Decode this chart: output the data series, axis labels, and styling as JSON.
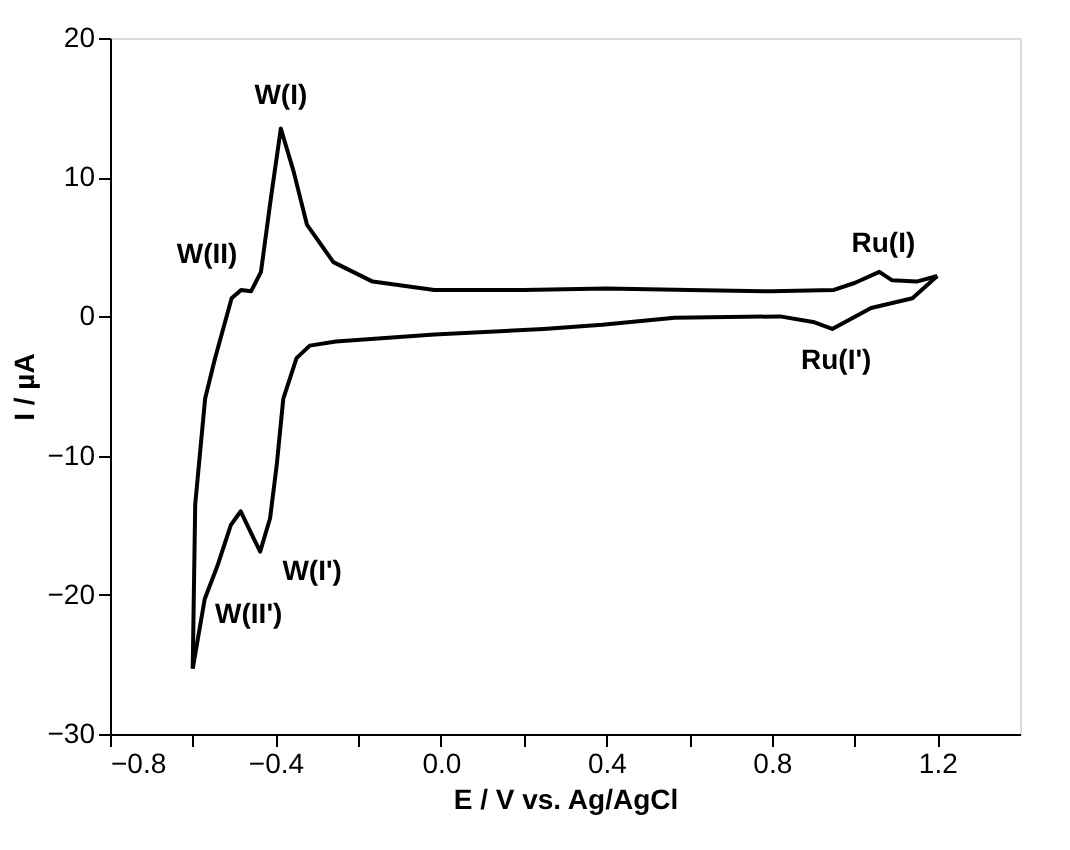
{
  "chart_data": {
    "type": "line",
    "xlabel": "E / V vs. Ag/AgCl",
    "ylabel": "I / µA",
    "xlim": [
      -0.8,
      1.4
    ],
    "ylim": [
      -30,
      20
    ],
    "xticks": [
      -0.8,
      {
        "value": -0.6,
        "label": null
      },
      -0.4,
      {
        "value": -0.2,
        "label": null
      },
      {
        "value": 0.0,
        "label": "0.0"
      },
      {
        "value": 0.2,
        "label": null
      },
      0.4,
      {
        "value": 0.6,
        "label": null
      },
      0.8,
      {
        "value": 1.0,
        "label": null
      },
      1.2
    ],
    "yticks": [
      -30,
      -20,
      -10,
      0,
      10,
      20
    ],
    "grid": false,
    "marker": "none",
    "line_style": "solid",
    "series": [
      {
        "color": "#000000",
        "x": [
          -0.6,
          -0.594,
          -0.57,
          -0.546,
          -0.506,
          -0.483,
          -0.459,
          -0.435,
          -0.411,
          -0.387,
          -0.356,
          -0.324,
          -0.26,
          -0.165,
          -0.016,
          0.2,
          0.4,
          0.6,
          0.8,
          0.95,
          1.0,
          1.06,
          1.09,
          1.15,
          1.2
        ],
        "values": [
          -25.3,
          -13.5,
          -5.9,
          -3.0,
          1.3,
          1.9,
          1.8,
          3.2,
          8.5,
          13.5,
          10.4,
          6.6,
          3.9,
          2.5,
          1.9,
          1.9,
          2.0,
          1.9,
          1.8,
          1.9,
          2.4,
          3.2,
          2.6,
          2.5,
          2.9
        ]
      },
      {
        "color": "#000000",
        "x": [
          1.2,
          1.14,
          1.04,
          0.946,
          0.9,
          0.82,
          0.565,
          0.39,
          0.248,
          -0.016,
          -0.254,
          -0.317,
          -0.349,
          -0.381,
          -0.397,
          -0.413,
          -0.437,
          -0.46,
          -0.484,
          -0.508,
          -0.54,
          -0.571,
          -0.6
        ],
        "values": [
          2.9,
          1.3,
          0.6,
          -0.9,
          -0.4,
          0.0,
          -0.1,
          -0.6,
          -0.9,
          -1.3,
          -1.8,
          -2.1,
          -3.0,
          -5.9,
          -10.7,
          -14.5,
          -16.9,
          -15.5,
          -14.0,
          -15.0,
          -17.9,
          -20.3,
          -25.3
        ]
      }
    ],
    "annotations": [
      {
        "text": "W(I)",
        "x": -0.387,
        "y": 13.5
      },
      {
        "text": "W(II)",
        "x": -0.459,
        "y": 1.8
      },
      {
        "text": "W(I')",
        "x": -0.437,
        "y": -16.9
      },
      {
        "text": "W(II')",
        "x": -0.571,
        "y": -20.3
      },
      {
        "text": "Ru(I)",
        "x": 1.06,
        "y": 3.2
      },
      {
        "text": "Ru(I')",
        "x": 0.946,
        "y": -0.9
      }
    ]
  }
}
